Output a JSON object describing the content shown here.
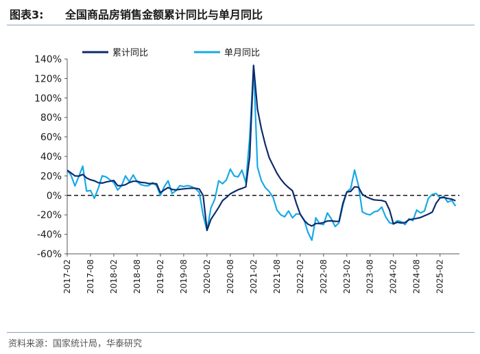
{
  "header": {
    "label": "图表3:",
    "title": "全国商品房销售金额累计同比与单月同比"
  },
  "source": "资料来源：国家统计局，华泰研究",
  "colors": {
    "cumulative": "#0d2a6b",
    "monthly": "#16a9e6",
    "zero_line": "#000000",
    "axis": "#555555"
  },
  "chart_data": {
    "type": "line",
    "title": "",
    "xlabel": "",
    "ylabel": "",
    "ylim": [
      -60,
      140
    ],
    "yticks": [
      140,
      120,
      100,
      80,
      60,
      40,
      20,
      0,
      -20,
      -40,
      -60
    ],
    "ytick_labels": [
      "140%",
      "120%",
      "100%",
      "80%",
      "60%",
      "40%",
      "20%",
      "0%",
      "-20%",
      "-40%",
      "-60%"
    ],
    "xtick_labels": [
      "2017-02",
      "2017-08",
      "2018-02",
      "2018-08",
      "2019-02",
      "2019-08",
      "2020-02",
      "2020-08",
      "2021-02",
      "2021-08",
      "2022-02",
      "2022-08",
      "2023-02",
      "2023-08",
      "2024-02",
      "2024-08",
      "2025-02"
    ],
    "x_start": "2017-02",
    "reference_line": {
      "y": 0,
      "style": "dashed"
    },
    "legend": {
      "position": "top-left"
    },
    "series": [
      {
        "name": "累计同比",
        "key": "cumulative",
        "points": [
          [
            "2017-02",
            25.8
          ],
          [
            "2017-03",
            23.0
          ],
          [
            "2017-04",
            20.0
          ],
          [
            "2017-05",
            19.8
          ],
          [
            "2017-06",
            21.5
          ],
          [
            "2017-07",
            17.9
          ],
          [
            "2017-08",
            16.0
          ],
          [
            "2017-09",
            15.0
          ],
          [
            "2017-10",
            13.0
          ],
          [
            "2017-11",
            12.6
          ],
          [
            "2017-12",
            13.7
          ],
          [
            "2018-01",
            14.5
          ],
          [
            "2018-02",
            15.3
          ],
          [
            "2018-03",
            10.0
          ],
          [
            "2018-04",
            10.0
          ],
          [
            "2018-05",
            11.0
          ],
          [
            "2018-06",
            13.2
          ],
          [
            "2018-07",
            14.5
          ],
          [
            "2018-08",
            14.5
          ],
          [
            "2018-09",
            13.3
          ],
          [
            "2018-10",
            13.0
          ],
          [
            "2018-11",
            12.1
          ],
          [
            "2018-12",
            12.2
          ],
          [
            "2019-01",
            12.0
          ],
          [
            "2019-02",
            2.8
          ],
          [
            "2019-03",
            5.6
          ],
          [
            "2019-04",
            8.1
          ],
          [
            "2019-05",
            6.1
          ],
          [
            "2019-06",
            5.6
          ],
          [
            "2019-07",
            6.2
          ],
          [
            "2019-08",
            6.7
          ],
          [
            "2019-09",
            7.1
          ],
          [
            "2019-10",
            7.3
          ],
          [
            "2019-11",
            7.3
          ],
          [
            "2019-12",
            6.5
          ],
          [
            "2020-01",
            0
          ],
          [
            "2020-02",
            -35.9
          ],
          [
            "2020-03",
            -24.7
          ],
          [
            "2020-04",
            -18.6
          ],
          [
            "2020-05",
            -12.3
          ],
          [
            "2020-06",
            -5.4
          ],
          [
            "2020-07",
            -2.1
          ],
          [
            "2020-08",
            1.6
          ],
          [
            "2020-09",
            3.7
          ],
          [
            "2020-10",
            5.8
          ],
          [
            "2020-11",
            7.2
          ],
          [
            "2020-12",
            8.7
          ],
          [
            "2021-01",
            40
          ],
          [
            "2021-02",
            133.4
          ],
          [
            "2021-03",
            88.5
          ],
          [
            "2021-04",
            68.2
          ],
          [
            "2021-05",
            52.4
          ],
          [
            "2021-06",
            38.9
          ],
          [
            "2021-07",
            30.7
          ],
          [
            "2021-08",
            22.8
          ],
          [
            "2021-09",
            16.6
          ],
          [
            "2021-10",
            11.8
          ],
          [
            "2021-11",
            8.0
          ],
          [
            "2021-12",
            4.8
          ],
          [
            "2022-01",
            -8
          ],
          [
            "2022-02",
            -19.3
          ],
          [
            "2022-03",
            -25.6
          ],
          [
            "2022-04",
            -29.5
          ],
          [
            "2022-05",
            -31.5
          ],
          [
            "2022-06",
            -28.9
          ],
          [
            "2022-07",
            -28.8
          ],
          [
            "2022-08",
            -27.9
          ],
          [
            "2022-09",
            -26.3
          ],
          [
            "2022-10",
            -26.1
          ],
          [
            "2022-11",
            -26.6
          ],
          [
            "2022-12",
            -26.7
          ],
          [
            "2023-01",
            -8
          ],
          [
            "2023-02",
            3.5
          ],
          [
            "2023-03",
            4.1
          ],
          [
            "2023-04",
            8.8
          ],
          [
            "2023-05",
            8.4
          ],
          [
            "2023-06",
            1.1
          ],
          [
            "2023-07",
            -1.5
          ],
          [
            "2023-08",
            -3.2
          ],
          [
            "2023-09",
            -4.6
          ],
          [
            "2023-10",
            -4.9
          ],
          [
            "2023-11",
            -5.2
          ],
          [
            "2023-12",
            -6.5
          ],
          [
            "2024-01",
            -15
          ],
          [
            "2024-02",
            -29.3
          ],
          [
            "2024-03",
            -27.6
          ],
          [
            "2024-04",
            -28.3
          ],
          [
            "2024-05",
            -27.9
          ],
          [
            "2024-06",
            -25.0
          ],
          [
            "2024-07",
            -24.3
          ],
          [
            "2024-08",
            -23.6
          ],
          [
            "2024-09",
            -22.7
          ],
          [
            "2024-10",
            -20.9
          ],
          [
            "2024-11",
            -19.2
          ],
          [
            "2024-12",
            -17.1
          ],
          [
            "2025-01",
            -8
          ],
          [
            "2025-02",
            -2.6
          ],
          [
            "2025-03",
            -2.1
          ],
          [
            "2025-04",
            -3.2
          ],
          [
            "2025-05",
            -3.8
          ],
          [
            "2025-06",
            -5.5
          ]
        ]
      },
      {
        "name": "单月同比",
        "key": "monthly",
        "points": [
          [
            "2017-02",
            25.8
          ],
          [
            "2017-03",
            20.5
          ],
          [
            "2017-04",
            9.7
          ],
          [
            "2017-05",
            19.5
          ],
          [
            "2017-06",
            30.0
          ],
          [
            "2017-07",
            4.4
          ],
          [
            "2017-08",
            5.0
          ],
          [
            "2017-09",
            -3.0
          ],
          [
            "2017-10",
            7.2
          ],
          [
            "2017-11",
            20.1
          ],
          [
            "2017-12",
            19.0
          ],
          [
            "2018-01",
            16.0
          ],
          [
            "2018-02",
            13.0
          ],
          [
            "2018-03",
            5.5
          ],
          [
            "2018-04",
            10.0
          ],
          [
            "2018-05",
            20.0
          ],
          [
            "2018-06",
            14.0
          ],
          [
            "2018-07",
            21.0
          ],
          [
            "2018-08",
            14.0
          ],
          [
            "2018-09",
            11.0
          ],
          [
            "2018-10",
            10.0
          ],
          [
            "2018-11",
            10.0
          ],
          [
            "2018-12",
            13.0
          ],
          [
            "2019-01",
            10.0
          ],
          [
            "2019-02",
            0
          ],
          [
            "2019-03",
            9.0
          ],
          [
            "2019-04",
            15.0
          ],
          [
            "2019-05",
            2.0
          ],
          [
            "2019-06",
            4.7
          ],
          [
            "2019-07",
            10.0
          ],
          [
            "2019-08",
            9.0
          ],
          [
            "2019-09",
            10.0
          ],
          [
            "2019-10",
            9.0
          ],
          [
            "2019-11",
            7.0
          ],
          [
            "2019-12",
            3.0
          ],
          [
            "2020-01",
            -20
          ],
          [
            "2020-02",
            -35.9
          ],
          [
            "2020-03",
            -13.0
          ],
          [
            "2020-04",
            -4.0
          ],
          [
            "2020-05",
            15.0
          ],
          [
            "2020-06",
            12.0
          ],
          [
            "2020-07",
            16.0
          ],
          [
            "2020-08",
            27.0
          ],
          [
            "2020-09",
            20.0
          ],
          [
            "2020-10",
            19.0
          ],
          [
            "2020-11",
            26.0
          ],
          [
            "2020-12",
            13.0
          ],
          [
            "2021-01",
            60
          ],
          [
            "2021-02",
            133.4
          ],
          [
            "2021-03",
            29.0
          ],
          [
            "2021-04",
            15.0
          ],
          [
            "2021-05",
            8.0
          ],
          [
            "2021-06",
            4.0
          ],
          [
            "2021-07",
            -2.0
          ],
          [
            "2021-08",
            -15.0
          ],
          [
            "2021-09",
            -20.0
          ],
          [
            "2021-10",
            -22.0
          ],
          [
            "2021-11",
            -16.0
          ],
          [
            "2021-12",
            -23.0
          ],
          [
            "2022-01",
            -19
          ],
          [
            "2022-02",
            -19.3
          ],
          [
            "2022-03",
            -25.0
          ],
          [
            "2022-04",
            -38.0
          ],
          [
            "2022-05",
            -46.0
          ],
          [
            "2022-06",
            -23.0
          ],
          [
            "2022-07",
            -29.0
          ],
          [
            "2022-08",
            -30.0
          ],
          [
            "2022-09",
            -18.0
          ],
          [
            "2022-10",
            -24.0
          ],
          [
            "2022-11",
            -32.0
          ],
          [
            "2022-12",
            -28.0
          ],
          [
            "2023-01",
            -10
          ],
          [
            "2023-02",
            3.5
          ],
          [
            "2023-03",
            7.0
          ],
          [
            "2023-04",
            26.0
          ],
          [
            "2023-05",
            10.0
          ],
          [
            "2023-06",
            -17.0
          ],
          [
            "2023-07",
            -19.0
          ],
          [
            "2023-08",
            -20.0
          ],
          [
            "2023-09",
            -17.0
          ],
          [
            "2023-10",
            -16.0
          ],
          [
            "2023-11",
            -12.0
          ],
          [
            "2023-12",
            -22.0
          ],
          [
            "2024-01",
            -28
          ],
          [
            "2024-02",
            -29.3
          ],
          [
            "2024-03",
            -26.0
          ],
          [
            "2024-04",
            -27.0
          ],
          [
            "2024-05",
            -30.0
          ],
          [
            "2024-06",
            -24.0
          ],
          [
            "2024-07",
            -26.0
          ],
          [
            "2024-08",
            -15.0
          ],
          [
            "2024-09",
            -18.0
          ],
          [
            "2024-10",
            -16.0
          ],
          [
            "2024-11",
            -3.0
          ],
          [
            "2024-12",
            1.0
          ],
          [
            "2025-01",
            2
          ],
          [
            "2025-02",
            -2.6
          ],
          [
            "2025-03",
            -1.0
          ],
          [
            "2025-04",
            -7.0
          ],
          [
            "2025-05",
            -5.0
          ],
          [
            "2025-06",
            -11.0
          ]
        ]
      }
    ]
  }
}
